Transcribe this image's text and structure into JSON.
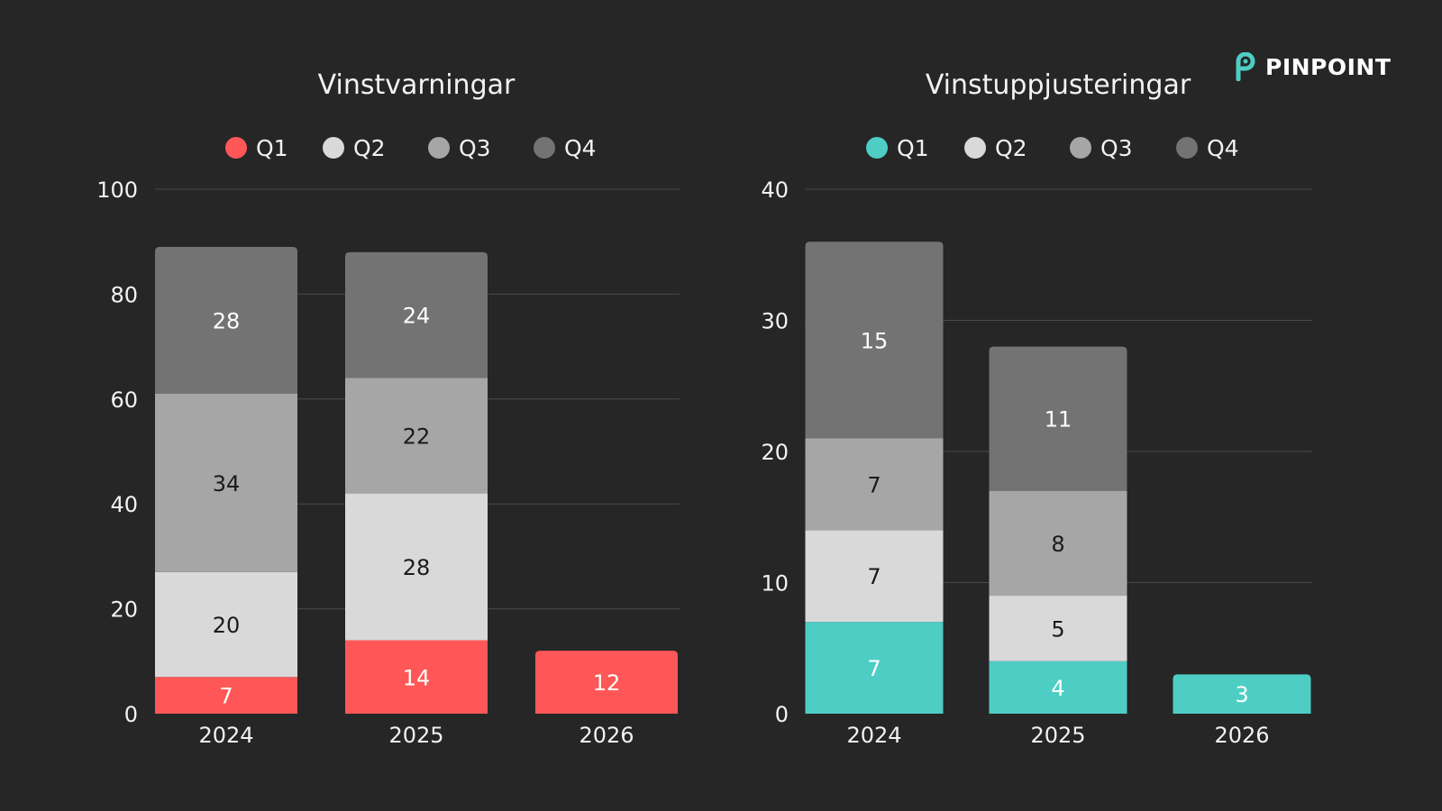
{
  "brand": {
    "name": "PINPOINT",
    "logo_icon": "pinpoint-p-icon",
    "logo_color": "#4ecdc4"
  },
  "colors": {
    "background": "#262626",
    "text": "#f2f2f2",
    "grid": "#4a4a4a",
    "Q2": "#d9d9d9",
    "Q3": "#a6a6a6",
    "Q4": "#737373",
    "warnings_Q1": "#ff5757",
    "upgrades_Q1": "#4ecdc4"
  },
  "chart_data": [
    {
      "type": "bar",
      "stacked": true,
      "title": "Vinstvarningar",
      "categories": [
        "2024",
        "2025",
        "2026"
      ],
      "series": [
        {
          "name": "Q1",
          "values": [
            7,
            14,
            12
          ]
        },
        {
          "name": "Q2",
          "values": [
            20,
            28,
            null
          ]
        },
        {
          "name": "Q3",
          "values": [
            34,
            22,
            null
          ]
        },
        {
          "name": "Q4",
          "values": [
            28,
            24,
            null
          ]
        }
      ],
      "ylim": [
        0,
        100
      ],
      "yticks": [
        0,
        20,
        40,
        60,
        80,
        100
      ],
      "grid": true,
      "legend": "top",
      "xlabel": "",
      "ylabel": ""
    },
    {
      "type": "bar",
      "stacked": true,
      "title": "Vinstuppjusteringar",
      "categories": [
        "2024",
        "2025",
        "2026"
      ],
      "series": [
        {
          "name": "Q1",
          "values": [
            7,
            4,
            3
          ]
        },
        {
          "name": "Q2",
          "values": [
            7,
            5,
            null
          ]
        },
        {
          "name": "Q3",
          "values": [
            7,
            8,
            null
          ]
        },
        {
          "name": "Q4",
          "values": [
            15,
            11,
            null
          ]
        }
      ],
      "ylim": [
        0,
        40
      ],
      "yticks": [
        0,
        10,
        20,
        30,
        40
      ],
      "grid": true,
      "legend": "top",
      "xlabel": "",
      "ylabel": ""
    }
  ]
}
